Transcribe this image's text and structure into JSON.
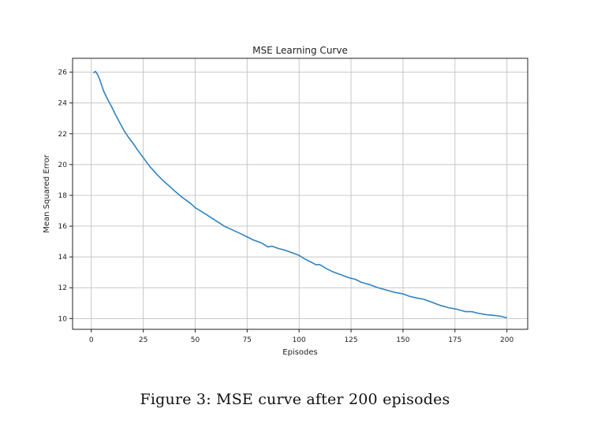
{
  "figure": {
    "caption": "Figure 3: MSE curve after 200 episodes"
  },
  "chart_data": {
    "type": "line",
    "title": "MSE Learning Curve",
    "xlabel": "Episodes",
    "ylabel": "Mean Squared Error",
    "xlim": [
      -9,
      210
    ],
    "ylim": [
      9.3,
      26.9
    ],
    "xticks": [
      0,
      25,
      50,
      75,
      100,
      125,
      150,
      175,
      200
    ],
    "yticks": [
      10,
      12,
      14,
      16,
      18,
      20,
      22,
      24,
      26
    ],
    "grid": true,
    "color": "#2f83bf",
    "series": [
      {
        "x": [
          1,
          2,
          3,
          4,
          5,
          6,
          8,
          10,
          12,
          14,
          16,
          18,
          20,
          22,
          25,
          28,
          30,
          32,
          35,
          38,
          40,
          43,
          45,
          48,
          50,
          53,
          56,
          60,
          64,
          68,
          72,
          75,
          78,
          82,
          85,
          87,
          90,
          93,
          96,
          100,
          103,
          106,
          108,
          110,
          113,
          116,
          120,
          124,
          127,
          130,
          134,
          138,
          142,
          146,
          150,
          153,
          156,
          160,
          164,
          168,
          172,
          176,
          180,
          183,
          186,
          190,
          194,
          197,
          200
        ],
        "y": [
          25.95,
          26.05,
          25.85,
          25.55,
          25.15,
          24.75,
          24.2,
          23.7,
          23.15,
          22.65,
          22.15,
          21.75,
          21.4,
          21.0,
          20.45,
          19.9,
          19.6,
          19.3,
          18.9,
          18.55,
          18.3,
          17.95,
          17.75,
          17.45,
          17.2,
          16.95,
          16.7,
          16.35,
          16.0,
          15.75,
          15.5,
          15.3,
          15.1,
          14.9,
          14.65,
          14.7,
          14.55,
          14.45,
          14.3,
          14.1,
          13.85,
          13.65,
          13.5,
          13.5,
          13.25,
          13.05,
          12.85,
          12.65,
          12.55,
          12.35,
          12.2,
          12.0,
          11.85,
          11.7,
          11.6,
          11.45,
          11.35,
          11.25,
          11.05,
          10.85,
          10.7,
          10.6,
          10.45,
          10.45,
          10.35,
          10.25,
          10.2,
          10.15,
          10.05
        ]
      }
    ]
  }
}
